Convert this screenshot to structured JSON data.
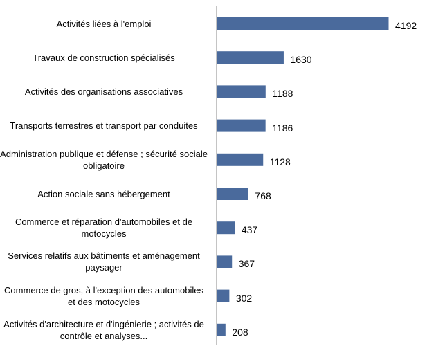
{
  "chart_data": {
    "type": "bar",
    "orientation": "horizontal",
    "color": "#4a6a9c",
    "categories": [
      "Activités liées à l'emploi",
      "Travaux de construction spécialisés",
      "Activités des organisations associatives",
      "Transports terrestres et transport par conduites",
      "Administration publique et défense ; sécurité sociale obligatoire",
      "Action sociale sans hébergement",
      "Commerce et réparation d'automobiles et de motocycles",
      "Services relatifs aux bâtiments et aménagement paysager",
      "Commerce de gros, à l'exception des automobiles et des motocycles",
      "Activités d'architecture et d'ingénierie ; activités de contrôle et analyses..."
    ],
    "values": [
      4192,
      1630,
      1188,
      1186,
      1128,
      768,
      437,
      367,
      302,
      208
    ]
  }
}
